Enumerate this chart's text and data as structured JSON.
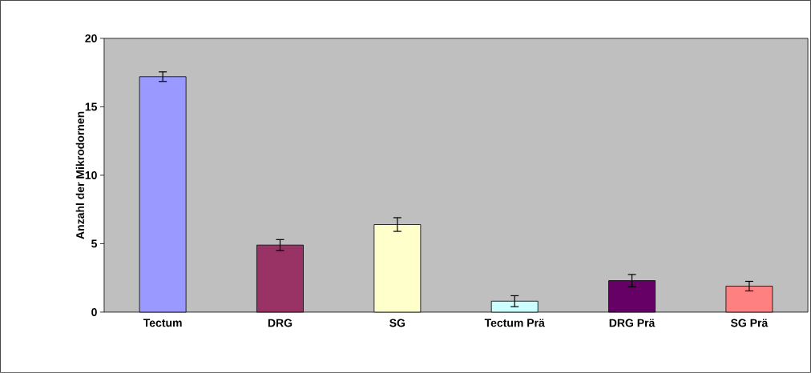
{
  "chart_data": {
    "type": "bar",
    "ylabel": "Anzahl der Mikrodornen",
    "categories": [
      "Tectum",
      "DRG",
      "SG",
      "Tectum Prä",
      "DRG Prä",
      "SG Prä"
    ],
    "values": [
      17.2,
      4.9,
      6.4,
      0.8,
      2.3,
      1.9
    ],
    "errors": [
      0.35,
      0.4,
      0.5,
      0.4,
      0.45,
      0.35
    ],
    "colors": [
      "#9999ff",
      "#993366",
      "#ffffcc",
      "#ccffff",
      "#660066",
      "#ff8080"
    ],
    "ylim": [
      0,
      20
    ],
    "yticks": [
      0,
      5,
      10,
      15,
      20
    ]
  }
}
